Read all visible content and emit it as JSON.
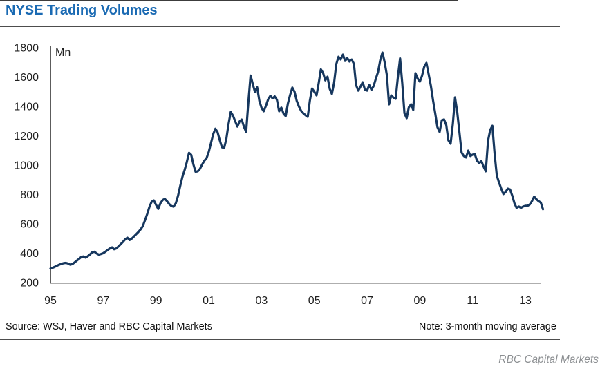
{
  "title": "NYSE Trading Volumes",
  "footer": {
    "source": "Source: WSJ, Haver and RBC Capital Markets",
    "note": "Note: 3-month moving average",
    "brand": "RBC Capital Markets"
  },
  "colors": {
    "title": "#1a6ab3",
    "line": "#16375e",
    "tick_text": "#1f1f1f",
    "y_spine": "#4a4a4a",
    "x_axis": "#a3a3a3"
  },
  "chart_data": {
    "type": "line",
    "title": "NYSE Trading Volumes",
    "y_axis_unit": "Mn",
    "ylim": [
      200,
      1800
    ],
    "y_ticks": [
      200,
      400,
      600,
      800,
      1000,
      1200,
      1400,
      1600,
      1800
    ],
    "x_start_year": 1995,
    "points_per_month": 1,
    "x_frequency": "monthly",
    "x_range_label": "Jan 1995 - Sep 2013",
    "x_tick_years": [
      1995,
      1997,
      1999,
      2001,
      2003,
      2005,
      2007,
      2009,
      2011,
      2013
    ],
    "x_tick_labels": [
      "95",
      "97",
      "99",
      "01",
      "03",
      "05",
      "07",
      "09",
      "11",
      "13"
    ],
    "grid": false,
    "legend": "none",
    "series": [
      {
        "name": "NYSE trading volume, 3-month moving average (Mn shares)",
        "values": [
          295,
          301,
          308,
          315,
          322,
          328,
          332,
          334,
          330,
          322,
          326,
          338,
          350,
          362,
          374,
          378,
          370,
          380,
          392,
          406,
          410,
          398,
          390,
          395,
          400,
          410,
          422,
          432,
          440,
          427,
          433,
          447,
          462,
          478,
          495,
          506,
          490,
          500,
          515,
          530,
          545,
          562,
          585,
          625,
          668,
          715,
          750,
          760,
          730,
          702,
          740,
          762,
          770,
          755,
          735,
          722,
          717,
          740,
          790,
          858,
          920,
          965,
          1020,
          1084,
          1070,
          1005,
          955,
          958,
          975,
          1005,
          1030,
          1047,
          1090,
          1150,
          1210,
          1248,
          1225,
          1170,
          1122,
          1117,
          1180,
          1280,
          1362,
          1338,
          1300,
          1263,
          1298,
          1310,
          1262,
          1226,
          1430,
          1610,
          1555,
          1499,
          1531,
          1438,
          1390,
          1367,
          1404,
          1448,
          1472,
          1455,
          1468,
          1445,
          1367,
          1392,
          1350,
          1334,
          1420,
          1478,
          1528,
          1500,
          1437,
          1400,
          1370,
          1353,
          1340,
          1329,
          1440,
          1522,
          1500,
          1475,
          1560,
          1652,
          1628,
          1578,
          1602,
          1520,
          1485,
          1560,
          1688,
          1738,
          1720,
          1753,
          1710,
          1729,
          1706,
          1719,
          1690,
          1546,
          1508,
          1535,
          1564,
          1515,
          1508,
          1546,
          1513,
          1540,
          1590,
          1635,
          1715,
          1767,
          1700,
          1612,
          1414,
          1475,
          1460,
          1452,
          1600,
          1727,
          1560,
          1353,
          1320,
          1395,
          1414,
          1376,
          1626,
          1590,
          1569,
          1610,
          1670,
          1696,
          1620,
          1541,
          1440,
          1353,
          1259,
          1226,
          1306,
          1311,
          1273,
          1169,
          1146,
          1280,
          1461,
          1360,
          1226,
          1085,
          1062,
          1052,
          1099,
          1062,
          1071,
          1075,
          1030,
          1014,
          1028,
          990,
          958,
          1165,
          1240,
          1268,
          1080,
          929,
          882,
          840,
          803,
          817,
          840,
          835,
          793,
          741,
          709,
          718,
          709,
          718,
          723,
          723,
          732,
          755,
          786,
          768,
          755,
          746,
          700
        ]
      }
    ]
  }
}
